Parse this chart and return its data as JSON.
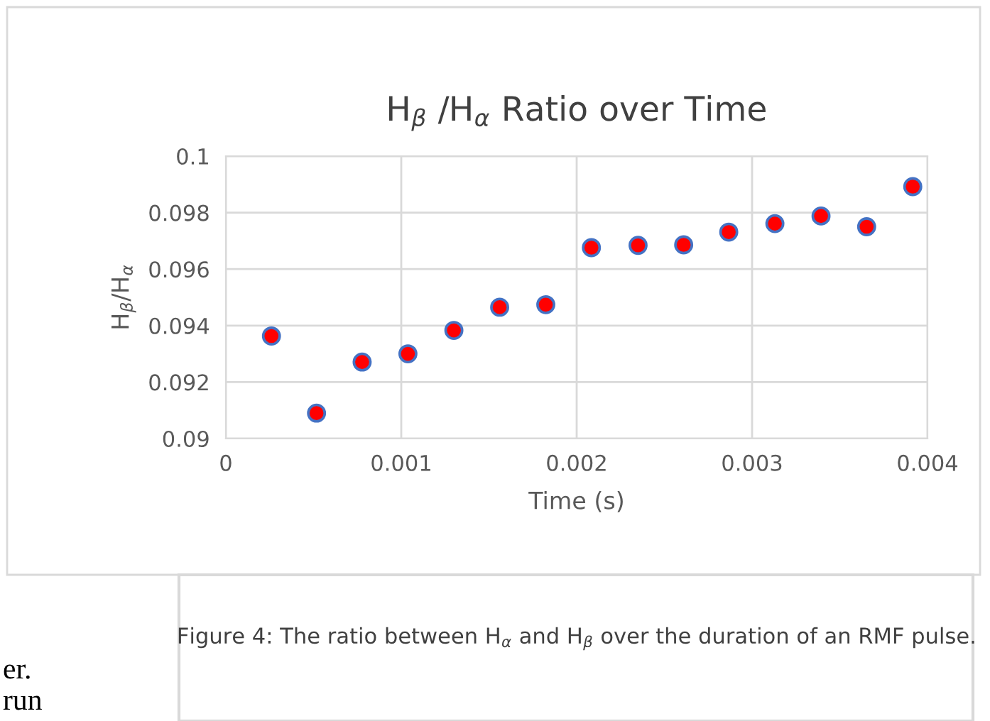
{
  "chart_data": {
    "type": "scatter",
    "title": "H$_{β}$ /H$_{α}$ Ratio over Time",
    "xlabel": "Time (s)",
    "ylabel": "H$_{β}$/H$_{α}$",
    "series": [
      {
        "color": "#ff0000",
        "x": [
          0.00026,
          0.000517,
          0.000777,
          0.001038,
          0.0013,
          0.001561,
          0.001824,
          0.002084,
          0.00235,
          0.00261,
          0.002867,
          0.00313,
          0.003393,
          0.003653,
          0.003916
        ],
        "values": [
          0.09363,
          0.0909,
          0.09271,
          0.093,
          0.09383,
          0.09465,
          0.09474,
          0.09676,
          0.09684,
          0.09686,
          0.09731,
          0.09761,
          0.09788,
          0.0975,
          0.09892
        ]
      }
    ],
    "xlim": [
      0,
      0.004
    ],
    "xticks": [
      0,
      0.001,
      0.002,
      0.003,
      0.004
    ],
    "ylim": [
      0.09,
      0.1
    ],
    "yticks": [
      0.09,
      0.092,
      0.094,
      0.096,
      0.098,
      0.1
    ],
    "grid": true,
    "marker": "circle",
    "legend": false,
    "annotations": [
      "Figure 4: The ratio between H$_{α}$ and H$_{β}$ over the duration of an RMF pulse.",
      "er.",
      "run"
    ]
  }
}
